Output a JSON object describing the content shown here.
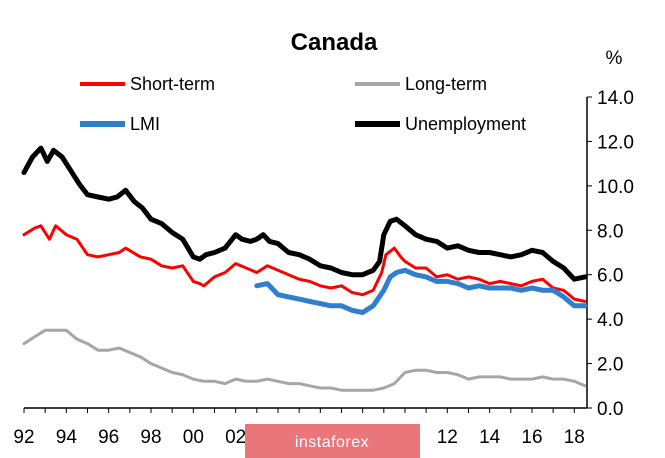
{
  "chart_data": {
    "type": "line",
    "title": "Canada",
    "unit_label": "%",
    "xlabel": "",
    "ylabel": "",
    "xlim": [
      1992,
      2018.6
    ],
    "ylim": [
      0,
      14
    ],
    "y_ticks": [
      "0.0",
      "2.0",
      "4.0",
      "6.0",
      "8.0",
      "10.0",
      "12.0",
      "14.0"
    ],
    "x_ticks": [
      {
        "year": 1992,
        "label": "92"
      },
      {
        "year": 1994,
        "label": "94"
      },
      {
        "year": 1996,
        "label": "96"
      },
      {
        "year": 1998,
        "label": "98"
      },
      {
        "year": 2000,
        "label": "00"
      },
      {
        "year": 2002,
        "label": "02"
      },
      {
        "year": 2012,
        "label": "12"
      },
      {
        "year": 2014,
        "label": "14"
      },
      {
        "year": 2016,
        "label": "16"
      },
      {
        "year": 2018,
        "label": "18"
      }
    ],
    "grid": false,
    "legend_position": "top",
    "series": [
      {
        "name": "Short-term",
        "color": "#ff0000",
        "x": [
          1992.0,
          1992.5,
          1992.8,
          1993.2,
          1993.5,
          1994.0,
          1994.5,
          1995.0,
          1995.5,
          1996.0,
          1996.5,
          1996.8,
          1997.5,
          1998.0,
          1998.5,
          1999.0,
          1999.5,
          2000.0,
          2000.3,
          2000.5,
          2001.0,
          2001.5,
          2002.0,
          2002.5,
          2003.0,
          2003.5,
          2004.0,
          2004.5,
          2005.0,
          2005.5,
          2006.0,
          2006.5,
          2007.0,
          2007.5,
          2008.0,
          2008.5,
          2008.9,
          2009.1,
          2009.5,
          2009.8,
          2010.0,
          2010.5,
          2011.0,
          2011.5,
          2012.0,
          2012.5,
          2013.0,
          2013.5,
          2014.0,
          2014.5,
          2015.0,
          2015.5,
          2016.0,
          2016.5,
          2017.0,
          2017.5,
          2018.0,
          2018.5
        ],
        "values": [
          7.8,
          8.1,
          8.2,
          7.6,
          8.2,
          7.8,
          7.6,
          6.9,
          6.8,
          6.9,
          7.0,
          7.2,
          6.8,
          6.7,
          6.4,
          6.3,
          6.4,
          5.7,
          5.6,
          5.5,
          5.9,
          6.1,
          6.5,
          6.3,
          6.1,
          6.4,
          6.2,
          6.0,
          5.8,
          5.7,
          5.5,
          5.4,
          5.5,
          5.2,
          5.1,
          5.3,
          6.1,
          6.9,
          7.2,
          6.8,
          6.6,
          6.3,
          6.3,
          5.9,
          6.0,
          5.8,
          5.9,
          5.8,
          5.6,
          5.7,
          5.6,
          5.5,
          5.7,
          5.8,
          5.4,
          5.3,
          4.9,
          4.8
        ]
      },
      {
        "name": "Long-term",
        "color": "#a6a6a6",
        "x": [
          1992.0,
          1992.5,
          1993.0,
          1993.5,
          1994.0,
          1994.5,
          1995.0,
          1995.5,
          1996.0,
          1996.5,
          1997.0,
          1997.5,
          1998.0,
          1998.5,
          1999.0,
          1999.5,
          2000.0,
          2000.5,
          2001.0,
          2001.5,
          2002.0,
          2002.5,
          2003.0,
          2003.5,
          2004.0,
          2004.5,
          2005.0,
          2005.5,
          2006.0,
          2006.5,
          2007.0,
          2007.5,
          2008.0,
          2008.5,
          2009.0,
          2009.5,
          2010.0,
          2010.5,
          2011.0,
          2011.5,
          2012.0,
          2012.5,
          2013.0,
          2013.5,
          2014.0,
          2014.5,
          2015.0,
          2015.5,
          2016.0,
          2016.5,
          2017.0,
          2017.5,
          2018.0,
          2018.5
        ],
        "values": [
          2.9,
          3.2,
          3.5,
          3.5,
          3.5,
          3.1,
          2.9,
          2.6,
          2.6,
          2.7,
          2.5,
          2.3,
          2.0,
          1.8,
          1.6,
          1.5,
          1.3,
          1.2,
          1.2,
          1.1,
          1.3,
          1.2,
          1.2,
          1.3,
          1.2,
          1.1,
          1.1,
          1.0,
          0.9,
          0.9,
          0.8,
          0.8,
          0.8,
          0.8,
          0.9,
          1.1,
          1.6,
          1.7,
          1.7,
          1.6,
          1.6,
          1.5,
          1.3,
          1.4,
          1.4,
          1.4,
          1.3,
          1.3,
          1.3,
          1.4,
          1.3,
          1.3,
          1.2,
          1.0
        ]
      },
      {
        "name": "LMI",
        "color": "#2f7fd0",
        "x": [
          2003.0,
          2003.5,
          2004.0,
          2004.5,
          2005.0,
          2005.5,
          2006.0,
          2006.5,
          2007.0,
          2007.5,
          2008.0,
          2008.5,
          2009.0,
          2009.3,
          2009.6,
          2010.0,
          2010.5,
          2011.0,
          2011.5,
          2012.0,
          2012.5,
          2013.0,
          2013.5,
          2014.0,
          2014.5,
          2015.0,
          2015.5,
          2016.0,
          2016.5,
          2017.0,
          2017.5,
          2018.0,
          2018.5
        ],
        "values": [
          5.5,
          5.6,
          5.1,
          5.0,
          4.9,
          4.8,
          4.7,
          4.6,
          4.6,
          4.4,
          4.3,
          4.6,
          5.3,
          5.9,
          6.1,
          6.2,
          6.0,
          5.9,
          5.7,
          5.7,
          5.6,
          5.4,
          5.5,
          5.4,
          5.4,
          5.4,
          5.3,
          5.4,
          5.3,
          5.3,
          5.0,
          4.6,
          4.6
        ]
      },
      {
        "name": "Unemployment",
        "color": "#000000",
        "x": [
          1992.0,
          1992.4,
          1992.8,
          1993.1,
          1993.4,
          1993.8,
          1994.2,
          1994.6,
          1995.0,
          1995.5,
          1996.0,
          1996.4,
          1996.8,
          1997.2,
          1997.6,
          1998.0,
          1998.5,
          1999.0,
          1999.5,
          2000.0,
          2000.3,
          2000.6,
          2001.0,
          2001.5,
          2002.0,
          2002.3,
          2002.7,
          2003.0,
          2003.3,
          2003.6,
          2004.0,
          2004.5,
          2005.0,
          2005.5,
          2006.0,
          2006.5,
          2007.0,
          2007.5,
          2008.0,
          2008.5,
          2008.8,
          2009.0,
          2009.3,
          2009.6,
          2010.0,
          2010.5,
          2011.0,
          2011.5,
          2012.0,
          2012.5,
          2013.0,
          2013.5,
          2014.0,
          2014.5,
          2015.0,
          2015.5,
          2016.0,
          2016.5,
          2017.0,
          2017.5,
          2018.0,
          2018.5
        ],
        "values": [
          10.6,
          11.3,
          11.7,
          11.1,
          11.6,
          11.3,
          10.7,
          10.1,
          9.6,
          9.5,
          9.4,
          9.5,
          9.8,
          9.3,
          9.0,
          8.5,
          8.3,
          7.9,
          7.6,
          6.8,
          6.7,
          6.9,
          7.0,
          7.2,
          7.8,
          7.6,
          7.5,
          7.6,
          7.8,
          7.5,
          7.4,
          7.0,
          6.9,
          6.7,
          6.4,
          6.3,
          6.1,
          6.0,
          6.0,
          6.2,
          6.6,
          7.8,
          8.4,
          8.5,
          8.2,
          7.8,
          7.6,
          7.5,
          7.2,
          7.3,
          7.1,
          7.0,
          7.0,
          6.9,
          6.8,
          6.9,
          7.1,
          7.0,
          6.6,
          6.3,
          5.8,
          5.9
        ]
      }
    ]
  },
  "watermark": "instaforex"
}
